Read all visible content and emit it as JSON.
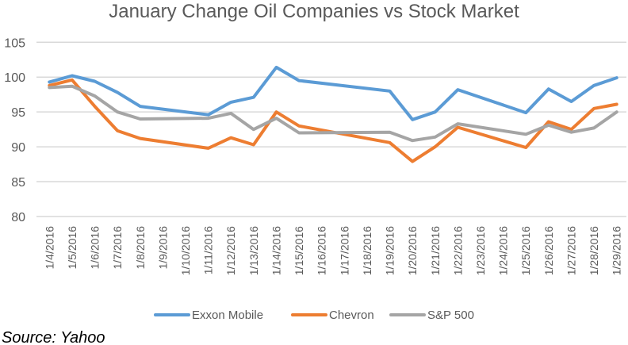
{
  "chart_data": {
    "type": "line",
    "title": "January Change Oil Companies vs Stock Market",
    "xlabel": "",
    "ylabel": "",
    "ylim": [
      80,
      105
    ],
    "yticks": [
      "80",
      "85",
      "90",
      "95",
      "100",
      "105"
    ],
    "grid": true,
    "legend_placement": "bottom",
    "categories": [
      "1/4/2016",
      "1/5/2016",
      "1/6/2016",
      "1/7/2016",
      "1/8/2016",
      "1/9/2016",
      "1/10/2016",
      "1/11/2016",
      "1/12/2016",
      "1/13/2016",
      "1/14/2016",
      "1/15/2016",
      "1/16/2016",
      "1/17/2016",
      "1/18/2016",
      "1/19/2016",
      "1/20/2016",
      "1/21/2016",
      "1/22/2016",
      "1/23/2016",
      "1/24/2016",
      "1/25/2016",
      "1/26/2016",
      "1/27/2016",
      "1/28/2016",
      "1/29/2016"
    ],
    "series": [
      {
        "name": "Exxon Mobile",
        "color": "#5B9BD5",
        "values": [
          99.3,
          100.2,
          99.4,
          97.8,
          95.8,
          null,
          null,
          94.6,
          96.4,
          97.1,
          101.4,
          99.5,
          null,
          null,
          null,
          98.0,
          93.9,
          95.0,
          98.2,
          null,
          null,
          94.9,
          98.3,
          96.5,
          98.8,
          99.9
        ]
      },
      {
        "name": "Chevron",
        "color": "#ED7D31",
        "values": [
          98.8,
          99.6,
          95.8,
          92.3,
          91.2,
          null,
          null,
          89.8,
          91.3,
          90.3,
          95.0,
          93.0,
          null,
          null,
          null,
          90.6,
          87.9,
          90.0,
          92.8,
          null,
          null,
          89.9,
          93.6,
          92.5,
          95.5,
          96.1
        ]
      },
      {
        "name": "S&P 500",
        "color": "#A5A5A5",
        "values": [
          98.5,
          98.7,
          97.3,
          95.0,
          94.0,
          null,
          null,
          94.1,
          94.8,
          92.5,
          94.1,
          92.0,
          null,
          null,
          null,
          92.1,
          90.9,
          91.4,
          93.3,
          null,
          null,
          91.8,
          93.1,
          92.1,
          92.7,
          95.0
        ]
      }
    ]
  },
  "source": "Source: Yahoo"
}
